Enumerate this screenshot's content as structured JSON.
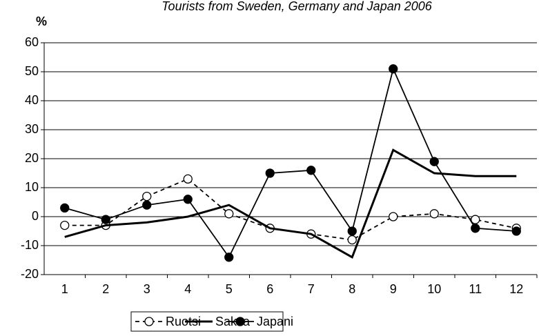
{
  "chart_data": {
    "type": "line",
    "title": "Tourists from Sweden, Germany and Japan 2006",
    "y_label": "%",
    "categories": [
      "1",
      "2",
      "3",
      "4",
      "5",
      "6",
      "7",
      "8",
      "9",
      "10",
      "11",
      "12"
    ],
    "series": [
      {
        "name": "Ruotsi",
        "color": "#000000",
        "dashed": true,
        "marker": "open",
        "values": [
          -3,
          -3,
          7,
          13,
          1,
          -4,
          -6,
          -8,
          0,
          1,
          -1,
          -4
        ]
      },
      {
        "name": "Saksa",
        "color": "#000000",
        "dashed": false,
        "marker": "none",
        "values": [
          -7,
          -3,
          -2,
          0,
          4,
          -4,
          -6,
          -14,
          23,
          15,
          14,
          14
        ]
      },
      {
        "name": "Japani",
        "color": "#000000",
        "dashed": false,
        "marker": "filled",
        "values": [
          3,
          -1,
          4,
          6,
          -14,
          15,
          16,
          -5,
          51,
          19,
          -4,
          -5
        ]
      }
    ],
    "ylim": [
      -20,
      60
    ],
    "yticks": [
      -20,
      -10,
      0,
      10,
      20,
      30,
      40,
      50,
      60
    ],
    "grid": true,
    "legend": "bottom"
  }
}
